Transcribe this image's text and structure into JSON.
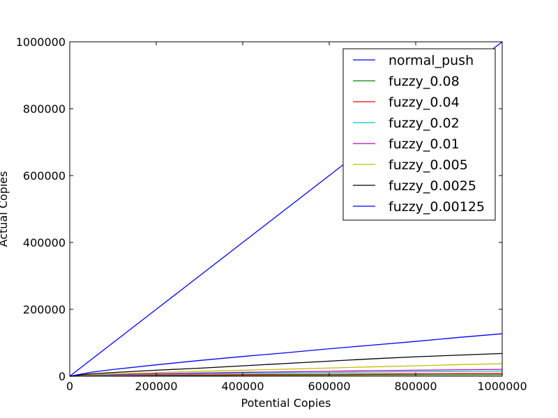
{
  "chart_data": {
    "type": "line",
    "title": "",
    "xlabel": "Potential Copies",
    "ylabel": "Actual Copies",
    "xlim": [
      0,
      1000000
    ],
    "ylim": [
      0,
      1000000
    ],
    "xticks": [
      0,
      200000,
      400000,
      600000,
      800000,
      1000000
    ],
    "yticks": [
      0,
      200000,
      400000,
      600000,
      800000,
      1000000
    ],
    "xtick_labels": [
      "0",
      "200000",
      "400000",
      "600000",
      "800000",
      "1000000"
    ],
    "ytick_labels": [
      "0",
      "200000",
      "400000",
      "600000",
      "800000",
      "1000000"
    ],
    "grid": false,
    "legend_position": "top-right",
    "x": [
      0,
      50000,
      100000,
      200000,
      300000,
      400000,
      500000,
      600000,
      700000,
      800000,
      900000,
      1000000
    ],
    "series": [
      {
        "name": "normal_push",
        "color": "#0000ff",
        "values": [
          0,
          50000,
          100000,
          200000,
          300000,
          400000,
          500000,
          600000,
          700000,
          800000,
          900000,
          1000000
        ]
      },
      {
        "name": "fuzzy_0.08",
        "color": "#008000",
        "values": [
          0,
          700,
          1100,
          1700,
          2200,
          2600,
          3000,
          3300,
          3600,
          3900,
          4200,
          4500
        ]
      },
      {
        "name": "fuzzy_0.04",
        "color": "#ff0000",
        "values": [
          0,
          1200,
          1900,
          3000,
          3900,
          4700,
          5400,
          6000,
          6600,
          7200,
          7700,
          8200
        ]
      },
      {
        "name": "fuzzy_0.02",
        "color": "#00bfbf",
        "values": [
          0,
          2000,
          3300,
          5300,
          7000,
          8500,
          9800,
          11000,
          12200,
          13300,
          14300,
          15300
        ]
      },
      {
        "name": "fuzzy_0.01",
        "color": "#bf00bf",
        "values": [
          0,
          3000,
          5000,
          7600,
          9700,
          11600,
          13300,
          14900,
          16400,
          17800,
          19200,
          20500
        ]
      },
      {
        "name": "fuzzy_0.005",
        "color": "#bfbf00",
        "values": [
          0,
          4500,
          7000,
          11000,
          14500,
          17800,
          21000,
          24500,
          28000,
          31000,
          34500,
          37500
        ]
      },
      {
        "name": "fuzzy_0.0025",
        "color": "#000000",
        "values": [
          0,
          7000,
          11000,
          18000,
          24000,
          31000,
          38000,
          45000,
          52000,
          58000,
          63000,
          68000
        ]
      },
      {
        "name": "fuzzy_0.00125",
        "color": "#0000ff",
        "values": [
          0,
          12000,
          20000,
          34000,
          47000,
          59000,
          70000,
          82000,
          93000,
          104000,
          116000,
          127000
        ]
      }
    ]
  }
}
